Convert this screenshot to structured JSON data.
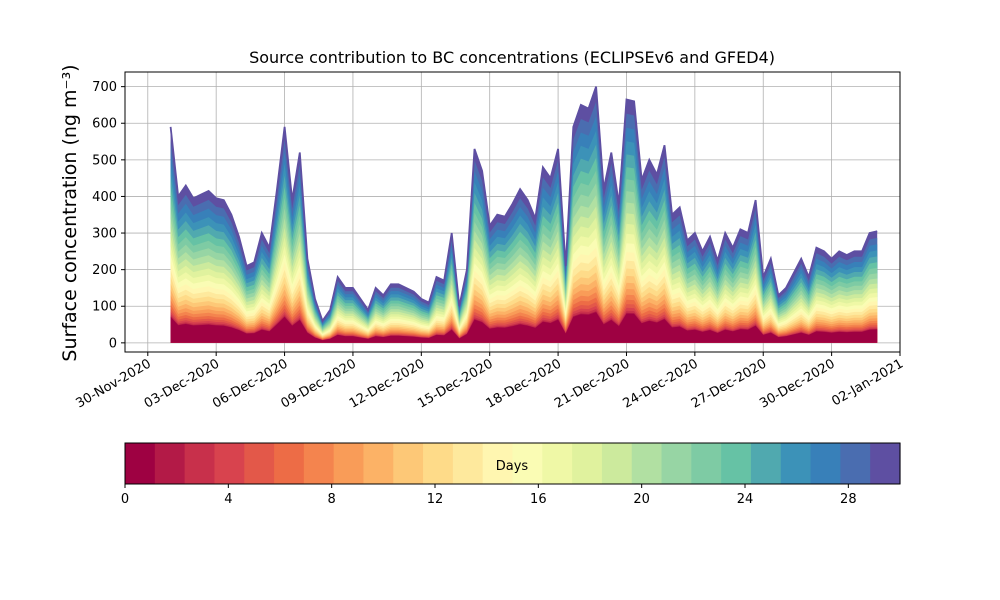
{
  "chart_data": {
    "type": "area",
    "title": "Source contribution to BC concentrations (ECLIPSEv6 and GFED4)",
    "ylabel": "Surface concentration (ng m⁻³)",
    "xlabel": "",
    "ylim": [
      -25,
      740
    ],
    "yticks": [
      0,
      100,
      200,
      300,
      400,
      500,
      600,
      700
    ],
    "xlim": [
      "2020-11-29",
      "2021-01-02"
    ],
    "xtick_labels": [
      "30-Nov-2020",
      "03-Dec-2020",
      "06-Dec-2020",
      "09-Dec-2020",
      "12-Dec-2020",
      "15-Dec-2020",
      "18-Dec-2020",
      "21-Dec-2020",
      "24-Dec-2020",
      "27-Dec-2020",
      "30-Dec-2020",
      "02-Jan-2021"
    ],
    "grid": true,
    "colorbar": {
      "label": "Days",
      "range": [
        0,
        30
      ],
      "ticks": [
        0,
        4,
        8,
        12,
        16,
        20,
        24,
        28
      ],
      "colormap": "Spectral",
      "colors": [
        "#9e0142",
        "#b31a47",
        "#c8304b",
        "#d8434e",
        "#e35849",
        "#ed6c46",
        "#f4844e",
        "#f99c58",
        "#fcb266",
        "#fdc877",
        "#fedb89",
        "#fee99d",
        "#fff6b0",
        "#fafcb4",
        "#eff8a6",
        "#e0f29e",
        "#ccea9d",
        "#b1e0a2",
        "#97d5a4",
        "#7ecba4",
        "#66c2a5",
        "#50a9af",
        "#3c92b8",
        "#3880b9",
        "#4a6db0",
        "#5e4fa2"
      ]
    },
    "series": [
      {
        "name": "",
        "x": [
          "2020-12-01",
          "2020-12-01",
          "2020-12-01",
          "2020-12-02",
          "2020-12-02",
          "2020-12-02",
          "2020-12-03",
          "2020-12-03",
          "2020-12-03",
          "2020-12-04",
          "2020-12-04",
          "2020-12-04",
          "2020-12-05",
          "2020-12-05",
          "2020-12-05",
          "2020-12-06",
          "2020-12-06",
          "2020-12-06",
          "2020-12-07",
          "2020-12-07",
          "2020-12-07",
          "2020-12-08",
          "2020-12-08",
          "2020-12-08",
          "2020-12-09",
          "2020-12-09",
          "2020-12-09",
          "2020-12-10",
          "2020-12-10",
          "2020-12-10",
          "2020-12-11",
          "2020-12-11",
          "2020-12-11",
          "2020-12-12",
          "2020-12-12",
          "2020-12-12",
          "2020-12-13",
          "2020-12-13",
          "2020-12-13",
          "2020-12-14",
          "2020-12-14",
          "2020-12-14",
          "2020-12-15",
          "2020-12-15",
          "2020-12-15",
          "2020-12-16",
          "2020-12-16",
          "2020-12-16",
          "2020-12-17",
          "2020-12-17",
          "2020-12-17",
          "2020-12-18",
          "2020-12-18",
          "2020-12-18",
          "2020-12-19",
          "2020-12-19",
          "2020-12-19",
          "2020-12-20",
          "2020-12-20",
          "2020-12-20",
          "2020-12-21",
          "2020-12-21",
          "2020-12-21",
          "2020-12-22",
          "2020-12-22",
          "2020-12-22",
          "2020-12-23",
          "2020-12-23",
          "2020-12-23",
          "2020-12-24",
          "2020-12-24",
          "2020-12-24",
          "2020-12-25",
          "2020-12-25",
          "2020-12-25",
          "2020-12-26",
          "2020-12-26",
          "2020-12-26",
          "2020-12-27",
          "2020-12-27",
          "2020-12-27",
          "2020-12-28",
          "2020-12-28",
          "2020-12-28",
          "2020-12-29",
          "2020-12-29",
          "2020-12-29",
          "2020-12-30",
          "2020-12-30",
          "2020-12-30",
          "2020-12-31",
          "2020-12-31",
          "2020-12-31",
          "2021-01-01"
        ],
        "y": [
          590,
          400,
          430,
          395,
          405,
          415,
          395,
          390,
          350,
          290,
          210,
          220,
          300,
          260,
          420,
          590,
          390,
          520,
          230,
          120,
          60,
          90,
          180,
          150,
          150,
          120,
          90,
          150,
          130,
          160,
          160,
          150,
          140,
          120,
          110,
          180,
          170,
          300,
          100,
          200,
          530,
          470,
          320,
          350,
          345,
          380,
          420,
          390,
          340,
          480,
          450,
          530,
          210,
          590,
          650,
          640,
          700,
          420,
          520,
          380,
          665,
          660,
          445,
          500,
          460,
          540,
          350,
          370,
          280,
          300,
          250,
          290,
          225,
          300,
          260,
          310,
          300,
          390,
          180,
          230,
          130,
          150,
          190,
          230,
          180,
          260,
          250,
          230,
          250,
          240,
          250,
          250,
          300,
          305
        ]
      }
    ]
  }
}
